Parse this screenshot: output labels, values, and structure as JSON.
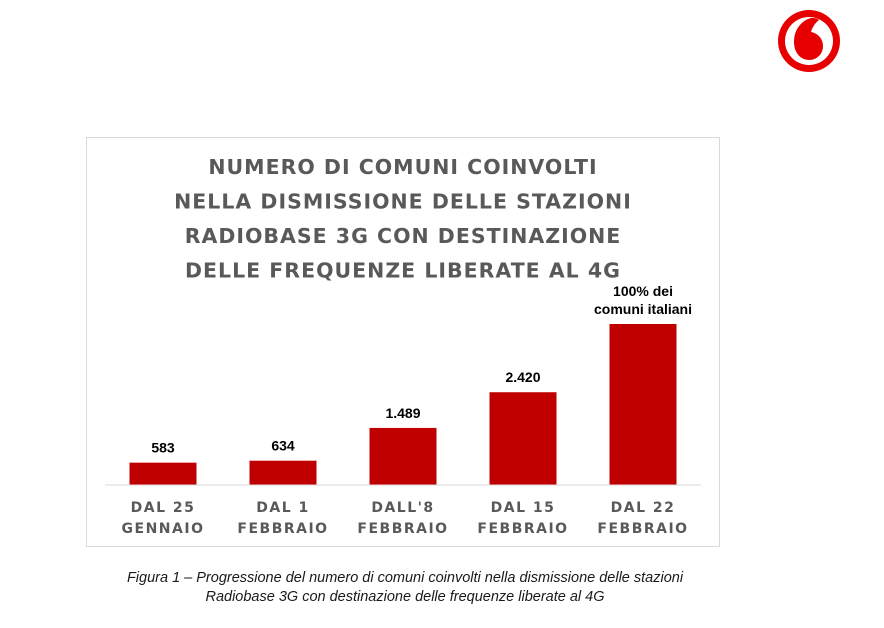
{
  "brand": {
    "logo_icon": "vodafone-logo-icon",
    "color": "#e60000"
  },
  "chart_data": {
    "type": "bar",
    "title_lines": [
      "NUMERO DI COMUNI COINVOLTI",
      "NELLA DISMISSIONE DELLE STAZIONI",
      "RADIOBASE 3G CON DESTINAZIONE",
      "DELLE FREQUENZE LIBERATE AL 4G"
    ],
    "categories": [
      [
        "DAL 25",
        "GENNAIO"
      ],
      [
        "DAL 1",
        "FEBBRAIO"
      ],
      [
        "DALL'8",
        "FEBBRAIO"
      ],
      [
        "DAL 15",
        "FEBBRAIO"
      ],
      [
        "DAL 22",
        "FEBBRAIO"
      ]
    ],
    "values": [
      583,
      634,
      1489,
      2420,
      4200
    ],
    "data_labels": [
      [
        "583"
      ],
      [
        "634"
      ],
      [
        "1.489"
      ],
      [
        "2.420"
      ],
      [
        "100% dei",
        "comuni italiani"
      ]
    ],
    "bar_color": "#c00000",
    "ylim": [
      0,
      4200
    ],
    "grid": false,
    "legend": "none"
  },
  "caption": {
    "line1": "Figura 1 – Progressione del numero di comuni coinvolti nella dismissione delle stazioni",
    "line2": "Radiobase 3G con destinazione delle frequenze liberate al 4G"
  }
}
